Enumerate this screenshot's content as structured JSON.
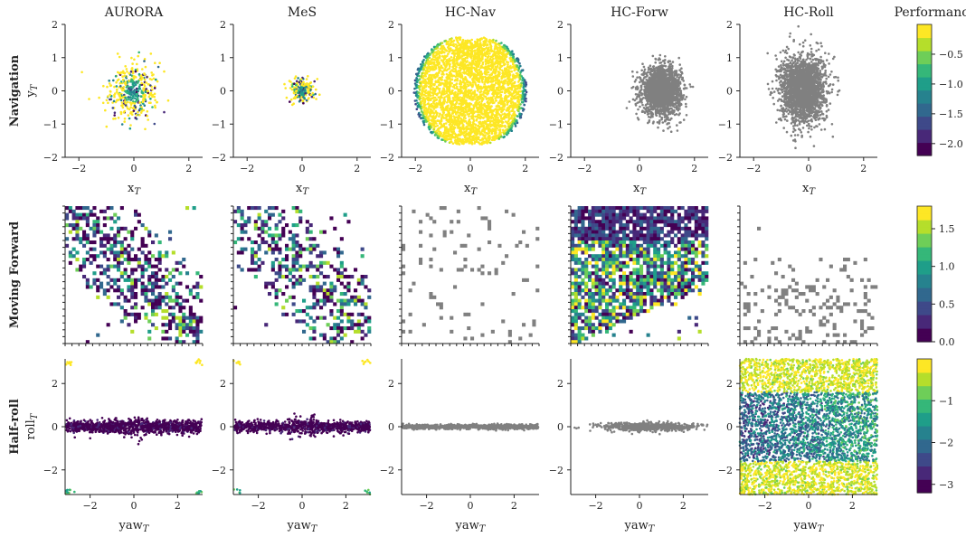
{
  "columns": [
    "AURORA",
    "MeS",
    "HC-Nav",
    "HC-Forw",
    "HC-Roll"
  ],
  "rows": [
    {
      "label": "Navigation",
      "ylabel_main": "y",
      "ylabel_sub": "T",
      "xlabel_main": "x",
      "xlabel_sub": "T"
    },
    {
      "label": "Moving Forward",
      "ylabel_main": "",
      "ylabel_sub": "",
      "xlabel_main": "",
      "xlabel_sub": ""
    },
    {
      "label": "Half-roll",
      "ylabel_main": "roll",
      "ylabel_sub": "T",
      "xlabel_main": "yaw",
      "xlabel_sub": "T"
    }
  ],
  "colorbar_title": "Performance",
  "colors": {
    "viridis": [
      "#440154",
      "#482878",
      "#3e4989",
      "#31688e",
      "#26828e",
      "#1f9e89",
      "#35b779",
      "#6ece58",
      "#b5de2b",
      "#fde725"
    ],
    "gray": "#808080"
  },
  "chart_data": [
    {
      "type": "scatter",
      "row": "Navigation",
      "xlim": [
        -2.5,
        2.5
      ],
      "ylim": [
        -2,
        2
      ],
      "xticks": [
        -2,
        0,
        2
      ],
      "yticks": [
        -2,
        -1,
        0,
        1,
        2
      ],
      "colorbar": {
        "min": -2.2,
        "max": 0,
        "ticks": [
          -2.0,
          -1.5,
          -1.0,
          -0.5
        ],
        "tick_labels": [
          "−2.0",
          "−1.5",
          "−1.0",
          "−0.5"
        ]
      },
      "panels": [
        {
          "name": "AURORA",
          "center": [
            0,
            0
          ],
          "spread": [
            0.45,
            0.4
          ],
          "count": 420,
          "colored": true
        },
        {
          "name": "MeS",
          "center": [
            0,
            0
          ],
          "spread": [
            0.22,
            0.18
          ],
          "count": 200,
          "colored": true
        },
        {
          "name": "HC-Nav",
          "center": [
            0,
            0
          ],
          "spread": [
            2.1,
            1.9
          ],
          "count": 3500,
          "colored": true,
          "shape": "bilobed"
        },
        {
          "name": "HC-Forw",
          "center": [
            0.8,
            0
          ],
          "spread": [
            0.35,
            0.35
          ],
          "count": 2000,
          "colored": false
        },
        {
          "name": "HC-Roll",
          "center": [
            -0.2,
            0.05
          ],
          "spread": [
            0.4,
            0.5
          ],
          "count": 2200,
          "colored": false
        }
      ]
    },
    {
      "type": "heatmap",
      "row": "Moving Forward",
      "grid": [
        40,
        40
      ],
      "colorbar": {
        "min": 0,
        "max": 1.8,
        "ticks": [
          0.0,
          0.5,
          1.0,
          1.5
        ],
        "tick_labels": [
          "0.0",
          "0.5",
          "1.0",
          "1.5"
        ]
      },
      "panels": [
        {
          "name": "AURORA",
          "density": 0.45,
          "colored": true,
          "pattern": "diagonal"
        },
        {
          "name": "MeS",
          "density": 0.4,
          "colored": true,
          "pattern": "diagonal"
        },
        {
          "name": "HC-Nav",
          "density": 0.06,
          "colored": false,
          "pattern": "sparse"
        },
        {
          "name": "HC-Forw",
          "density": 0.75,
          "colored": true,
          "pattern": "upper"
        },
        {
          "name": "HC-Roll",
          "density": 0.1,
          "colored": false,
          "pattern": "lower"
        }
      ]
    },
    {
      "type": "scatter",
      "row": "Half-roll",
      "xlim": [
        -3.14,
        3.14
      ],
      "ylim": [
        -3.14,
        3.14
      ],
      "xticks": [
        -2,
        0,
        2
      ],
      "yticks": [
        -2,
        0,
        2
      ],
      "colorbar": {
        "min": -3.2,
        "max": 0,
        "ticks": [
          -3,
          -2,
          -1
        ],
        "tick_labels": [
          "−3",
          "−2",
          "−1"
        ]
      },
      "panels": [
        {
          "name": "AURORA",
          "band": 0.3,
          "count": 1200,
          "colored": true,
          "corners": true
        },
        {
          "name": "MeS",
          "band": 0.28,
          "count": 1000,
          "colored": true,
          "corners": true
        },
        {
          "name": "HC-Nav",
          "band": 0.12,
          "count": 900,
          "colored": false
        },
        {
          "name": "HC-Forw",
          "band": 0.2,
          "count": 700,
          "colored": false,
          "narrow": true
        },
        {
          "name": "HC-Roll",
          "band": 3.14,
          "count": 4500,
          "colored": true,
          "full": true
        }
      ]
    }
  ]
}
